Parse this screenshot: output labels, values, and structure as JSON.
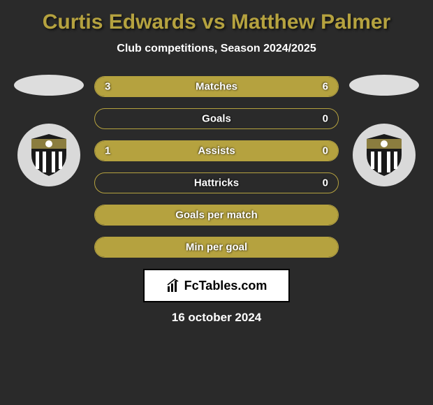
{
  "title": "Curtis Edwards vs Matthew Palmer",
  "subtitle": "Club competitions, Season 2024/2025",
  "date": "16 october 2024",
  "brand": "FcTables.com",
  "colors": {
    "accent": "#b5a23f",
    "background": "#2a2a2a",
    "text": "#ffffff",
    "brand_bg": "#ffffff",
    "brand_border": "#000000"
  },
  "bars": [
    {
      "label": "Matches",
      "left": "3",
      "right": "6",
      "left_pct": 30,
      "right_pct": 70
    },
    {
      "label": "Goals",
      "left": "",
      "right": "0",
      "left_pct": 0,
      "right_pct": 0
    },
    {
      "label": "Assists",
      "left": "1",
      "right": "0",
      "left_pct": 100,
      "right_pct": 0
    },
    {
      "label": "Hattricks",
      "left": "",
      "right": "0",
      "left_pct": 0,
      "right_pct": 0
    },
    {
      "label": "Goals per match",
      "left": "",
      "right": "",
      "left_pct": 100,
      "right_pct": 0,
      "full": true
    },
    {
      "label": "Min per goal",
      "left": "",
      "right": "",
      "left_pct": 100,
      "right_pct": 0,
      "full": true
    }
  ],
  "club_badge": {
    "bg": "#d9d9d9",
    "shield_body": "#1a1a1a",
    "shield_top": "#8b7d3f",
    "stripe": "#ffffff"
  }
}
